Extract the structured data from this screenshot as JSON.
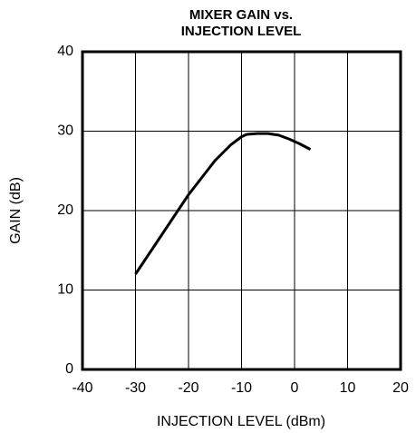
{
  "chart_data": {
    "type": "line",
    "title": [
      "MIXER GAIN vs.",
      "INJECTION LEVEL"
    ],
    "xlabel": "INJECTION LEVEL (dBm)",
    "ylabel": "GAIN  (dB)",
    "x": [
      -30,
      -25,
      -20,
      -15,
      -12,
      -10,
      -9,
      -7,
      -5,
      -3,
      -1,
      1,
      3
    ],
    "series": [
      {
        "color": "#000000",
        "values": [
          12,
          17,
          22,
          26.3,
          28.3,
          29.3,
          29.6,
          29.7,
          29.7,
          29.5,
          29,
          28.4,
          27.7
        ]
      }
    ],
    "xlim": [
      -40,
      20
    ],
    "xticks": [
      -40,
      -30,
      -20,
      -10,
      0,
      10,
      20
    ],
    "ylim": [
      0,
      40
    ],
    "yticks": [
      0,
      10,
      20,
      30,
      40
    ],
    "grid": true
  }
}
